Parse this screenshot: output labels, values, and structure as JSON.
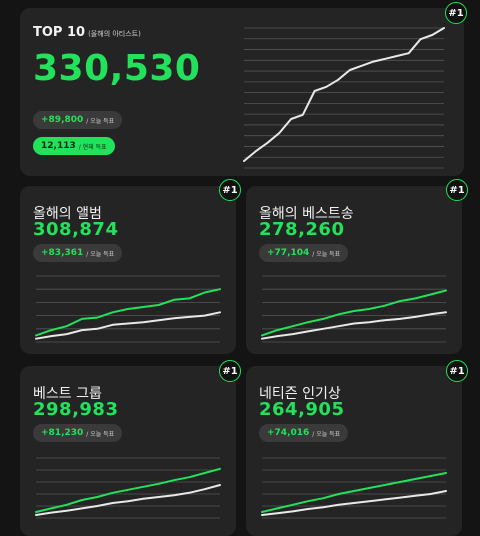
{
  "top10": {
    "title": "TOP 10",
    "subtitle": "(올해의 아티스트)",
    "value": "330,530",
    "delta": "+89,800",
    "delta_label": "/ 오늘 득표",
    "second": "12,113",
    "second_label": "/ 현재 득표",
    "rank": "#1",
    "chart": {
      "line": [
        5,
        12,
        18,
        25,
        35,
        38,
        55,
        58,
        63,
        70,
        73,
        76,
        78,
        80,
        82,
        92,
        95,
        100
      ]
    }
  },
  "album": {
    "title": "올해의 앨범",
    "value": "308,874",
    "delta": "+83,361",
    "delta_label": "/ 오늘 득표",
    "rank": "#1",
    "chart": {
      "green": [
        10,
        18,
        24,
        35,
        37,
        45,
        50,
        53,
        56,
        64,
        66,
        75,
        80
      ],
      "white": [
        5,
        9,
        12,
        18,
        20,
        26,
        28,
        30,
        33,
        36,
        38,
        40,
        45
      ]
    }
  },
  "bestsong": {
    "title": "올해의 베스트송",
    "value": "278,260",
    "delta": "+77,104",
    "delta_label": "/ 오늘 득표",
    "rank": "#1",
    "chart": {
      "green": [
        10,
        18,
        24,
        30,
        35,
        42,
        47,
        50,
        55,
        62,
        66,
        72,
        78
      ],
      "white": [
        5,
        9,
        12,
        16,
        20,
        24,
        28,
        30,
        33,
        35,
        38,
        42,
        45
      ]
    }
  },
  "group": {
    "title": "베스트 그룹",
    "value": "298,983",
    "delta": "+81,230",
    "delta_label": "/ 오늘 득표",
    "rank": "#1",
    "chart": {
      "green": [
        10,
        16,
        22,
        30,
        35,
        42,
        47,
        52,
        57,
        63,
        68,
        75,
        82
      ],
      "white": [
        5,
        9,
        12,
        16,
        20,
        25,
        28,
        32,
        35,
        38,
        42,
        48,
        55
      ]
    }
  },
  "netizen": {
    "title": "네티즌 인기상",
    "value": "264,905",
    "delta": "+74,016",
    "delta_label": "/ 오늘 득표",
    "rank": "#1",
    "chart": {
      "green": [
        10,
        16,
        22,
        28,
        33,
        40,
        45,
        50,
        55,
        60,
        65,
        70,
        75
      ],
      "white": [
        5,
        8,
        11,
        15,
        18,
        22,
        25,
        28,
        31,
        34,
        37,
        40,
        45
      ]
    }
  },
  "colors": {
    "accent": "#22e15a",
    "line_white": "#e8e8e8",
    "grid": "#555555"
  }
}
